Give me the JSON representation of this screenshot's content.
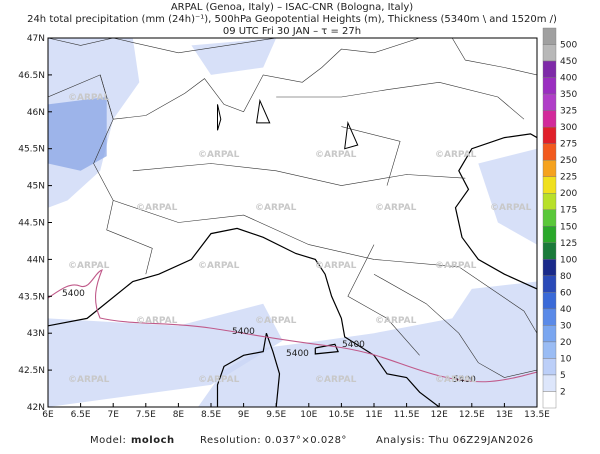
{
  "header": {
    "lines": [
      "ARPAL (Genoa, Italy)  –  ISAC-CNR (Bologna, Italy)",
      "24h total precipitation (mm (24h)⁻¹), 500hPa Geopotential Heights (m), Thickness (5340m \\ and 1520m /)",
      "09 UTC Fri 30 JAN  –  τ = 27h"
    ]
  },
  "map": {
    "lat_labels": [
      "47N",
      "46.5N",
      "46N",
      "45.5N",
      "45N",
      "44.5N",
      "44N",
      "43.5N",
      "43N",
      "42.5N",
      "42N"
    ],
    "lon_labels": [
      "6E",
      "6.5E",
      "7E",
      "7.5E",
      "8E",
      "8.5E",
      "9E",
      "9.5E",
      "10E",
      "10.5E",
      "11E",
      "11.5E",
      "12E",
      "12.5E",
      "13E",
      "13.5E"
    ],
    "watermark": "©ARPAL",
    "contour_label": "5400"
  },
  "colorbar": {
    "labels": [
      "500",
      "450",
      "400",
      "350",
      "325",
      "300",
      "275",
      "250",
      "225",
      "200",
      "175",
      "150",
      "125",
      "100",
      "80",
      "60",
      "40",
      "30",
      "20",
      "10",
      "5",
      "2"
    ]
  },
  "footer": {
    "model_label": "Model:",
    "model": "moloch",
    "resolution": "Resolution: 0.037°×0.028°",
    "analysis": "Analysis: Thu 06Z29JAN2026"
  }
}
